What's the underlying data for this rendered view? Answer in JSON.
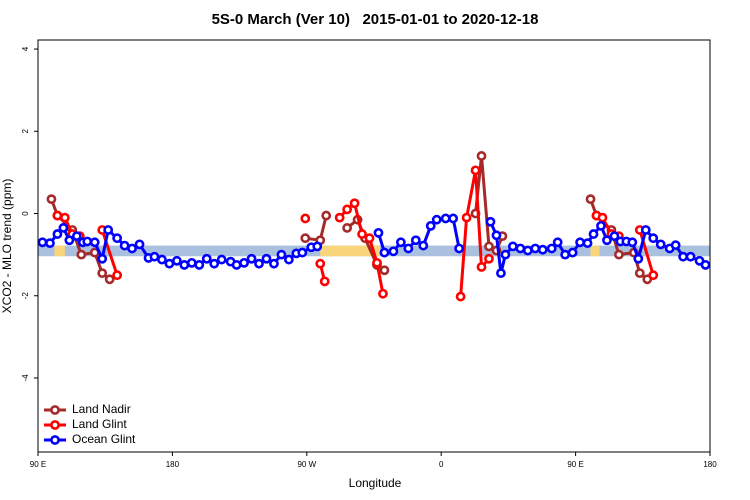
{
  "chart_data": {
    "type": "line",
    "title": "5S-0 March (Ver 10)   2015-01-01 to 2020-12-18",
    "xlabel": "Longitude",
    "ylabel": "XCO2 - MLO trend (ppm)",
    "xlim": [
      90,
      540
    ],
    "ylim": [
      -5.8,
      4.22
    ],
    "xticks": [
      {
        "value": 90,
        "label": "90 E"
      },
      180,
      {
        "value": 270,
        "label": "90 W"
      },
      {
        "value": 360,
        "label": "0"
      },
      {
        "value": 450,
        "label": "90 E"
      },
      {
        "value": 540,
        "label": "180"
      }
    ],
    "yticks": [
      -4,
      -2,
      0,
      2,
      4
    ],
    "band": [
      -1.04,
      -0.78
    ],
    "band_color": "#a9c0de",
    "band_highlights": [
      [
        101,
        108
      ],
      [
        279,
        319
      ],
      [
        460,
        466
      ]
    ],
    "band_highlight_color": "#f9d67c",
    "legend": "bottom-left",
    "series": [
      {
        "name": "Land Nadir",
        "color": "#a52a2a",
        "x": [
          99,
          103,
          113,
          119,
          128,
          133,
          138,
          null,
          269,
          279,
          283,
          null,
          297,
          304,
          309,
          317,
          322,
          null,
          383,
          387,
          392,
          397,
          401,
          null,
          460,
          464,
          474,
          479,
          489,
          493,
          498
        ],
        "values": [
          0.35,
          -0.05,
          -0.4,
          -1.0,
          -0.95,
          -1.45,
          -1.6,
          null,
          -0.6,
          -0.65,
          -0.05,
          null,
          -0.35,
          -0.15,
          -0.6,
          -1.25,
          -1.38,
          null,
          0.0,
          1.4,
          -0.8,
          -0.9,
          -0.55,
          null,
          0.35,
          -0.05,
          -0.4,
          -1.0,
          -0.95,
          -1.45,
          -1.6
        ]
      },
      {
        "name": "Land Glint",
        "color": "#ff0000",
        "x": [
          103,
          108,
          113,
          118,
          null,
          133,
          143,
          null,
          269,
          null,
          279,
          282,
          null,
          292,
          297,
          302,
          307,
          312,
          317,
          321,
          null,
          373,
          377,
          383,
          387,
          392,
          null,
          464,
          468,
          474,
          479,
          null,
          493,
          502
        ],
        "values": [
          -0.05,
          -0.1,
          -0.5,
          -0.55,
          null,
          -0.4,
          -1.5,
          null,
          -0.12,
          null,
          -1.22,
          -1.65,
          null,
          -0.1,
          0.1,
          0.25,
          -0.5,
          -0.6,
          -1.2,
          -1.95,
          null,
          -2.02,
          -0.1,
          1.05,
          -1.3,
          -1.1,
          null,
          -0.05,
          -0.1,
          -0.5,
          -0.55,
          null,
          -0.4,
          -1.5
        ]
      },
      {
        "name": "Ocean Glint",
        "color": "#0000ff",
        "x": [
          93,
          98,
          103,
          107,
          111,
          116,
          120,
          123,
          128,
          133,
          137,
          143,
          148,
          153,
          158,
          164,
          168,
          173,
          178,
          183,
          188,
          193,
          198,
          203,
          208,
          213,
          219,
          223,
          228,
          233,
          238,
          243,
          248,
          253,
          258,
          263,
          267,
          273,
          277,
          null,
          318,
          322,
          328,
          333,
          338,
          343,
          348,
          353,
          357,
          363,
          368,
          372,
          null,
          393,
          397,
          400,
          403,
          408,
          413,
          418,
          423,
          428,
          434,
          438,
          443,
          448,
          453,
          458,
          462,
          467,
          471,
          476,
          480,
          484,
          488,
          492,
          497,
          502,
          507,
          513,
          517,
          522,
          527,
          533,
          537
        ],
        "values": [
          -0.7,
          -0.72,
          -0.5,
          -0.35,
          -0.65,
          -0.55,
          -0.7,
          -0.68,
          -0.7,
          -1.1,
          -0.4,
          -0.6,
          -0.78,
          -0.85,
          -0.75,
          -1.08,
          -1.05,
          -1.12,
          -1.22,
          -1.15,
          -1.25,
          -1.2,
          -1.25,
          -1.1,
          -1.22,
          -1.12,
          -1.17,
          -1.25,
          -1.2,
          -1.1,
          -1.22,
          -1.1,
          -1.22,
          -1.0,
          -1.12,
          -0.97,
          -0.95,
          -0.82,
          -0.8,
          null,
          -0.47,
          -0.95,
          -0.92,
          -0.7,
          -0.85,
          -0.65,
          -0.78,
          -0.3,
          -0.15,
          -0.12,
          -0.12,
          -0.85,
          null,
          -0.2,
          -0.53,
          -1.45,
          -1.0,
          -0.8,
          -0.85,
          -0.9,
          -0.85,
          -0.88,
          -0.85,
          -0.7,
          -1.0,
          -0.95,
          -0.7,
          -0.72,
          -0.5,
          -0.3,
          -0.65,
          -0.55,
          -0.68,
          -0.68,
          -0.7,
          -1.1,
          -0.4,
          -0.6,
          -0.75,
          -0.85,
          -0.77,
          -1.05,
          -1.05,
          -1.15,
          -1.25
        ]
      }
    ]
  }
}
